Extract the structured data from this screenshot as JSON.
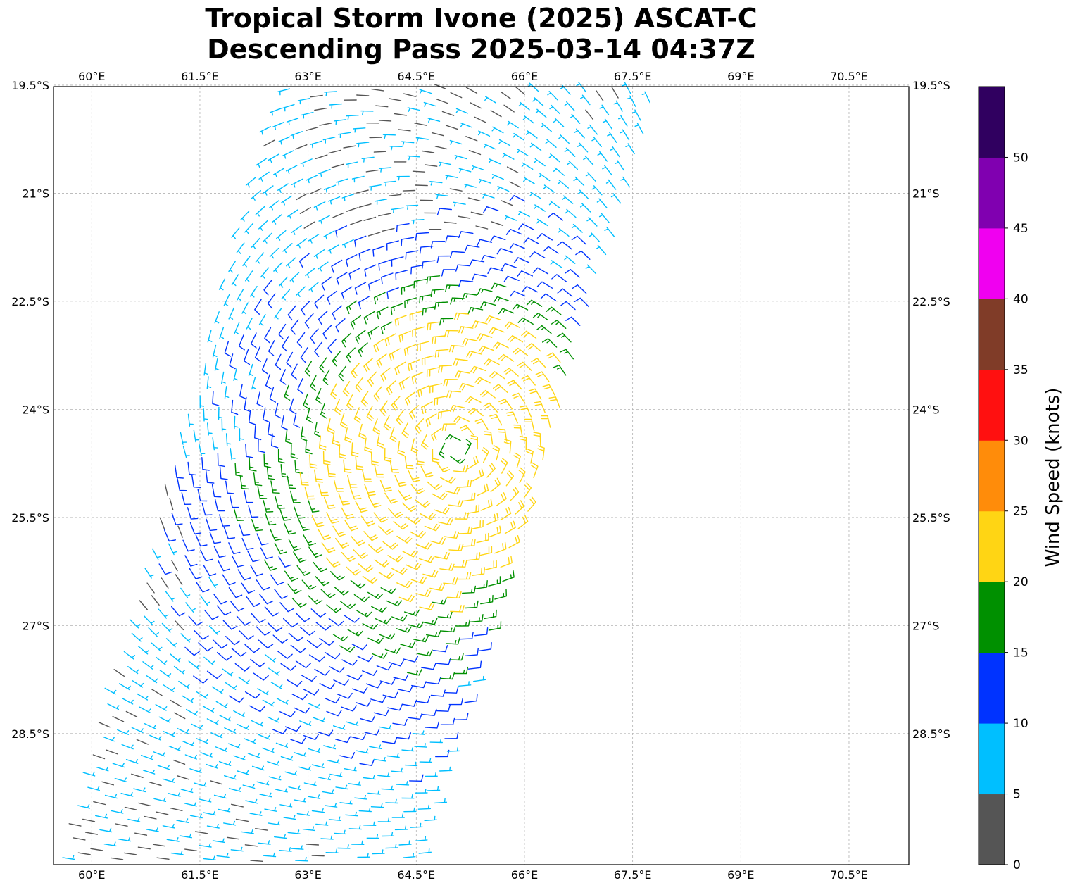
{
  "title": {
    "line1": "Tropical Storm Ivone (2025) ASCAT-C",
    "line2": "Descending Pass 2025-03-14 04:37Z"
  },
  "map": {
    "lon_range": [
      59.47,
      71.33
    ],
    "lat_range": [
      -30.32,
      -19.52
    ],
    "lon_ticks": [
      {
        "value": 60.0,
        "label": "60°E"
      },
      {
        "value": 61.5,
        "label": "61.5°E"
      },
      {
        "value": 63.0,
        "label": "63°E"
      },
      {
        "value": 64.5,
        "label": "64.5°E"
      },
      {
        "value": 66.0,
        "label": "66°E"
      },
      {
        "value": 67.5,
        "label": "67.5°E"
      },
      {
        "value": 69.0,
        "label": "69°E"
      },
      {
        "value": 70.5,
        "label": "70.5°E"
      }
    ],
    "lat_ticks": [
      {
        "value": -19.5,
        "label": "19.5°S"
      },
      {
        "value": -21.0,
        "label": "21°S"
      },
      {
        "value": -22.5,
        "label": "22.5°S"
      },
      {
        "value": -24.0,
        "label": "24°S"
      },
      {
        "value": -25.5,
        "label": "25.5°S"
      },
      {
        "value": -27.0,
        "label": "27°S"
      },
      {
        "value": -28.5,
        "label": "28.5°S"
      }
    ],
    "grid": true,
    "storm_center": {
      "lon": 65.05,
      "lat": -24.55
    },
    "swath_corners": [
      [
        62.6,
        -19.55
      ],
      [
        67.9,
        -19.55
      ],
      [
        64.5,
        -30.32
      ],
      [
        59.47,
        -30.32
      ]
    ]
  },
  "colorbar": {
    "label": "Wind Speed (knots)",
    "bins": [
      {
        "from": 0,
        "to": 5,
        "color": "#555555"
      },
      {
        "from": 5,
        "to": 10,
        "color": "#00bfff"
      },
      {
        "from": 10,
        "to": 15,
        "color": "#0033ff"
      },
      {
        "from": 15,
        "to": 20,
        "color": "#009000"
      },
      {
        "from": 20,
        "to": 25,
        "color": "#ffd514"
      },
      {
        "from": 25,
        "to": 30,
        "color": "#ff8c0a"
      },
      {
        "from": 30,
        "to": 35,
        "color": "#ff1010"
      },
      {
        "from": 35,
        "to": 40,
        "color": "#803c28"
      },
      {
        "from": 40,
        "to": 45,
        "color": "#f000f0"
      },
      {
        "from": 45,
        "to": 50,
        "color": "#8000b0"
      },
      {
        "from": 50,
        "to": 55,
        "color": "#300060"
      }
    ],
    "ticks": [
      0,
      5,
      10,
      15,
      20,
      25,
      30,
      35,
      40,
      45,
      50
    ]
  }
}
